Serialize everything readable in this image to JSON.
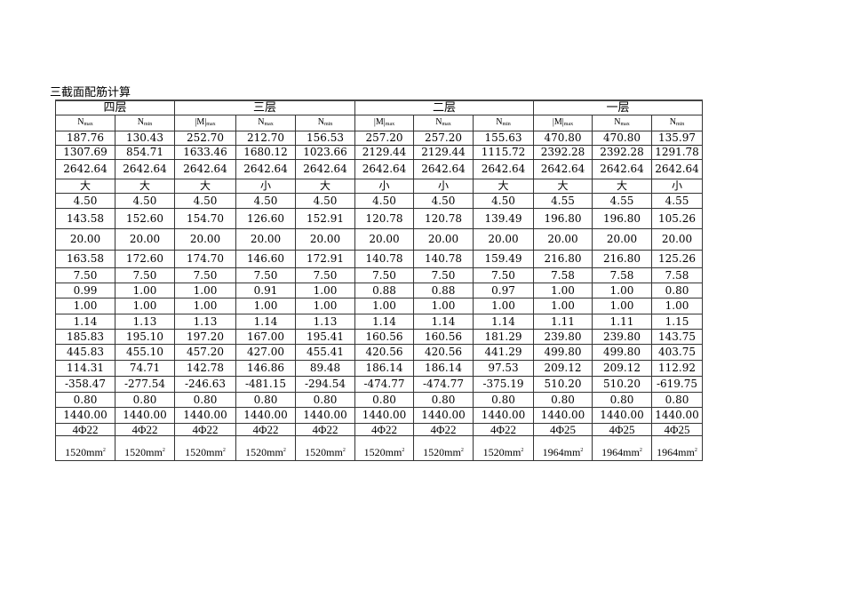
{
  "title": "三截面配筋计算",
  "floors": [
    {
      "label": "四层",
      "span": 2
    },
    {
      "label": "三层",
      "span": 3
    },
    {
      "label": "二层",
      "span": 3
    },
    {
      "label": "一层",
      "span": 3
    }
  ],
  "subheaders": [
    {
      "main": "N",
      "sub": "max"
    },
    {
      "main": "N",
      "sub": "min"
    },
    {
      "main": "|M|",
      "sub": "max"
    },
    {
      "main": "N",
      "sub": "max"
    },
    {
      "main": "N",
      "sub": "min"
    },
    {
      "main": "|M|",
      "sub": "max"
    },
    {
      "main": "N",
      "sub": "max"
    },
    {
      "main": "N",
      "sub": "min"
    },
    {
      "main": "|M|",
      "sub": "max"
    },
    {
      "main": "N",
      "sub": "max"
    },
    {
      "main": "N",
      "sub": "min"
    }
  ],
  "rows": [
    [
      "187.76",
      "130.43",
      "252.70",
      "212.70",
      "156.53",
      "257.20",
      "257.20",
      "155.63",
      "470.80",
      "470.80",
      "135.97"
    ],
    [
      "1307.69",
      "854.71",
      "1633.46",
      "1680.12",
      "1023.66",
      "2129.44",
      "2129.44",
      "1115.72",
      "2392.28",
      "2392.28",
      "1291.78"
    ],
    [
      "2642.64",
      "2642.64",
      "2642.64",
      "2642.64",
      "2642.64",
      "2642.64",
      "2642.64",
      "2642.64",
      "2642.64",
      "2642.64",
      "2642.64"
    ],
    [
      "大",
      "大",
      "大",
      "小",
      "大",
      "小",
      "小",
      "大",
      "大",
      "大",
      "小"
    ],
    [
      "4.50",
      "4.50",
      "4.50",
      "4.50",
      "4.50",
      "4.50",
      "4.50",
      "4.50",
      "4.55",
      "4.55",
      "4.55"
    ],
    [
      "143.58",
      "152.60",
      "154.70",
      "126.60",
      "152.91",
      "120.78",
      "120.78",
      "139.49",
      "196.80",
      "196.80",
      "105.26"
    ],
    [
      "20.00",
      "20.00",
      "20.00",
      "20.00",
      "20.00",
      "20.00",
      "20.00",
      "20.00",
      "20.00",
      "20.00",
      "20.00"
    ],
    [
      "163.58",
      "172.60",
      "174.70",
      "146.60",
      "172.91",
      "140.78",
      "140.78",
      "159.49",
      "216.80",
      "216.80",
      "125.26"
    ],
    [
      "7.50",
      "7.50",
      "7.50",
      "7.50",
      "7.50",
      "7.50",
      "7.50",
      "7.50",
      "7.58",
      "7.58",
      "7.58"
    ],
    [
      "0.99",
      "1.00",
      "1.00",
      "0.91",
      "1.00",
      "0.88",
      "0.88",
      "0.97",
      "1.00",
      "1.00",
      "0.80"
    ],
    [
      "1.00",
      "1.00",
      "1.00",
      "1.00",
      "1.00",
      "1.00",
      "1.00",
      "1.00",
      "1.00",
      "1.00",
      "1.00"
    ],
    [
      "1.14",
      "1.13",
      "1.13",
      "1.14",
      "1.13",
      "1.14",
      "1.14",
      "1.14",
      "1.11",
      "1.11",
      "1.15"
    ],
    [
      "185.83",
      "195.10",
      "197.20",
      "167.00",
      "195.41",
      "160.56",
      "160.56",
      "181.29",
      "239.80",
      "239.80",
      "143.75"
    ],
    [
      "445.83",
      "455.10",
      "457.20",
      "427.00",
      "455.41",
      "420.56",
      "420.56",
      "441.29",
      "499.80",
      "499.80",
      "403.75"
    ],
    [
      "114.31",
      "74.71",
      "142.78",
      "146.86",
      "89.48",
      "186.14",
      "186.14",
      "97.53",
      "209.12",
      "209.12",
      "112.92"
    ],
    [
      "-358.47",
      "-277.54",
      "-246.63",
      "-481.15",
      "-294.54",
      "-474.77",
      "-474.77",
      "-375.19",
      "510.20",
      "510.20",
      "-619.75"
    ],
    [
      "0.80",
      "0.80",
      "0.80",
      "0.80",
      "0.80",
      "0.80",
      "0.80",
      "0.80",
      "0.80",
      "0.80",
      "0.80"
    ],
    [
      "1440.00",
      "1440.00",
      "1440.00",
      "1440.00",
      "1440.00",
      "1440.00",
      "1440.00",
      "1440.00",
      "1440.00",
      "1440.00",
      "1440.00"
    ]
  ],
  "rebars": [
    "4Φ22",
    "4Φ22",
    "4Φ22",
    "4Φ22",
    "4Φ22",
    "4Φ22",
    "4Φ22",
    "4Φ22",
    "4Φ25",
    "4Φ25",
    "4Φ25"
  ],
  "areas": [
    "1520",
    "1520",
    "1520",
    "1520",
    "1520",
    "1520",
    "1520",
    "1520",
    "1964",
    "1964",
    "1964"
  ],
  "area_unit": "mm",
  "area_unit_exp": "2"
}
